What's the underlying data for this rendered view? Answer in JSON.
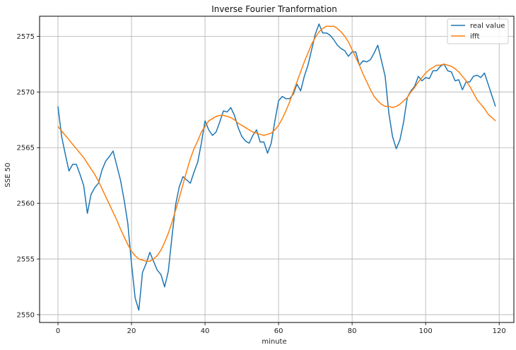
{
  "chart_data": {
    "type": "line",
    "title": "Inverse Fourier Tranformation",
    "xlabel": "minute",
    "ylabel": "SSE 50",
    "xlim": [
      -5,
      124
    ],
    "ylim": [
      2549.3,
      2576.8
    ],
    "xticks": [
      0,
      20,
      40,
      60,
      80,
      100,
      120
    ],
    "yticks": [
      2550,
      2555,
      2560,
      2565,
      2570,
      2575
    ],
    "grid": true,
    "legend_position": "top-right",
    "colors": {
      "real value": "#1f77b4",
      "ifft": "#ff7f0e"
    },
    "series": [
      {
        "name": "real value",
        "x": [
          0,
          1,
          2,
          3,
          4,
          5,
          6,
          7,
          8,
          9,
          10,
          11,
          12,
          13,
          14,
          15,
          16,
          17,
          18,
          19,
          20,
          21,
          22,
          23,
          24,
          25,
          26,
          27,
          28,
          29,
          30,
          31,
          32,
          33,
          34,
          35,
          36,
          37,
          38,
          39,
          40,
          41,
          42,
          43,
          44,
          45,
          46,
          47,
          48,
          49,
          50,
          51,
          52,
          53,
          54,
          55,
          56,
          57,
          58,
          59,
          60,
          61,
          62,
          63,
          64,
          65,
          66,
          67,
          68,
          69,
          70,
          71,
          72,
          73,
          74,
          75,
          76,
          77,
          78,
          79,
          80,
          81,
          82,
          83,
          84,
          85,
          86,
          87,
          88,
          89,
          90,
          91,
          92,
          93,
          94,
          95,
          96,
          97,
          98,
          99,
          100,
          101,
          102,
          103,
          104,
          105,
          106,
          107,
          108,
          109,
          110,
          111,
          112,
          113,
          114,
          115,
          116,
          117,
          118,
          119
        ],
        "values": [
          2568.7,
          2566.0,
          2564.4,
          2562.9,
          2563.5,
          2563.5,
          2562.6,
          2561.6,
          2559.1,
          2560.8,
          2561.4,
          2561.8,
          2563.0,
          2563.8,
          2564.2,
          2564.7,
          2563.4,
          2562.1,
          2560.3,
          2558.2,
          2554.6,
          2551.5,
          2550.4,
          2553.8,
          2554.6,
          2555.6,
          2554.8,
          2554.0,
          2553.6,
          2552.5,
          2553.9,
          2557.0,
          2559.9,
          2561.5,
          2562.4,
          2562.1,
          2561.8,
          2562.8,
          2563.7,
          2565.4,
          2567.4,
          2566.6,
          2566.1,
          2566.4,
          2567.3,
          2568.3,
          2568.2,
          2568.6,
          2567.9,
          2566.8,
          2566.0,
          2565.6,
          2565.4,
          2566.1,
          2566.6,
          2565.5,
          2565.5,
          2564.5,
          2565.4,
          2567.4,
          2569.2,
          2569.6,
          2569.4,
          2569.4,
          2569.8,
          2570.7,
          2570.1,
          2571.4,
          2572.4,
          2573.8,
          2575.2,
          2576.1,
          2575.3,
          2575.3,
          2575.1,
          2574.7,
          2574.2,
          2573.9,
          2573.7,
          2573.2,
          2573.6,
          2573.6,
          2572.4,
          2572.8,
          2572.7,
          2572.9,
          2573.5,
          2574.2,
          2572.8,
          2571.4,
          2568.1,
          2566.0,
          2564.9,
          2565.7,
          2567.3,
          2569.5,
          2570.1,
          2570.5,
          2571.4,
          2571.0,
          2571.3,
          2571.2,
          2571.9,
          2571.9,
          2572.3,
          2572.5,
          2571.9,
          2571.8,
          2571.0,
          2571.1,
          2570.2,
          2570.9,
          2570.9,
          2571.4,
          2571.5,
          2571.3,
          2571.7,
          2570.7,
          2569.7,
          2568.7
        ]
      },
      {
        "name": "ifft",
        "x": [
          0,
          1,
          2,
          3,
          4,
          5,
          6,
          7,
          8,
          9,
          10,
          11,
          12,
          13,
          14,
          15,
          16,
          17,
          18,
          19,
          20,
          21,
          22,
          23,
          24,
          25,
          26,
          27,
          28,
          29,
          30,
          31,
          32,
          33,
          34,
          35,
          36,
          37,
          38,
          39,
          40,
          41,
          42,
          43,
          44,
          45,
          46,
          47,
          48,
          49,
          50,
          51,
          52,
          53,
          54,
          55,
          56,
          57,
          58,
          59,
          60,
          61,
          62,
          63,
          64,
          65,
          66,
          67,
          68,
          69,
          70,
          71,
          72,
          73,
          74,
          75,
          76,
          77,
          78,
          79,
          80,
          81,
          82,
          83,
          84,
          85,
          86,
          87,
          88,
          89,
          90,
          91,
          92,
          93,
          94,
          95,
          96,
          97,
          98,
          99,
          100,
          101,
          102,
          103,
          104,
          105,
          106,
          107,
          108,
          109,
          110,
          111,
          112,
          113,
          114,
          115,
          116,
          117,
          118,
          119
        ],
        "values": [
          2566.9,
          2566.5,
          2566.1,
          2565.7,
          2565.3,
          2564.9,
          2564.5,
          2564.1,
          2563.6,
          2563.1,
          2562.6,
          2562.0,
          2561.3,
          2560.6,
          2559.9,
          2559.2,
          2558.5,
          2557.7,
          2557.0,
          2556.3,
          2555.7,
          2555.3,
          2555.0,
          2554.9,
          2554.8,
          2554.8,
          2555.0,
          2555.3,
          2555.8,
          2556.5,
          2557.3,
          2558.3,
          2559.4,
          2560.5,
          2561.7,
          2562.9,
          2564.0,
          2564.9,
          2565.6,
          2566.4,
          2566.9,
          2567.4,
          2567.6,
          2567.8,
          2567.9,
          2567.9,
          2567.8,
          2567.7,
          2567.5,
          2567.2,
          2567.0,
          2566.8,
          2566.6,
          2566.4,
          2566.3,
          2566.2,
          2566.1,
          2566.2,
          2566.3,
          2566.6,
          2567.0,
          2567.6,
          2568.3,
          2569.1,
          2570.0,
          2570.9,
          2571.8,
          2572.7,
          2573.5,
          2574.3,
          2574.9,
          2575.4,
          2575.7,
          2575.9,
          2575.9,
          2575.9,
          2575.7,
          2575.4,
          2575.0,
          2574.5,
          2573.8,
          2573.1,
          2572.4,
          2571.6,
          2570.9,
          2570.2,
          2569.6,
          2569.2,
          2568.9,
          2568.7,
          2568.7,
          2568.6,
          2568.7,
          2568.9,
          2569.2,
          2569.5,
          2570.0,
          2570.4,
          2570.9,
          2571.3,
          2571.7,
          2572.0,
          2572.2,
          2572.4,
          2572.4,
          2572.5,
          2572.4,
          2572.3,
          2572.1,
          2571.8,
          2571.4,
          2571.0,
          2570.5,
          2569.9,
          2569.3,
          2568.9,
          2568.5,
          2568.0,
          2567.7,
          2567.4
        ]
      }
    ]
  }
}
